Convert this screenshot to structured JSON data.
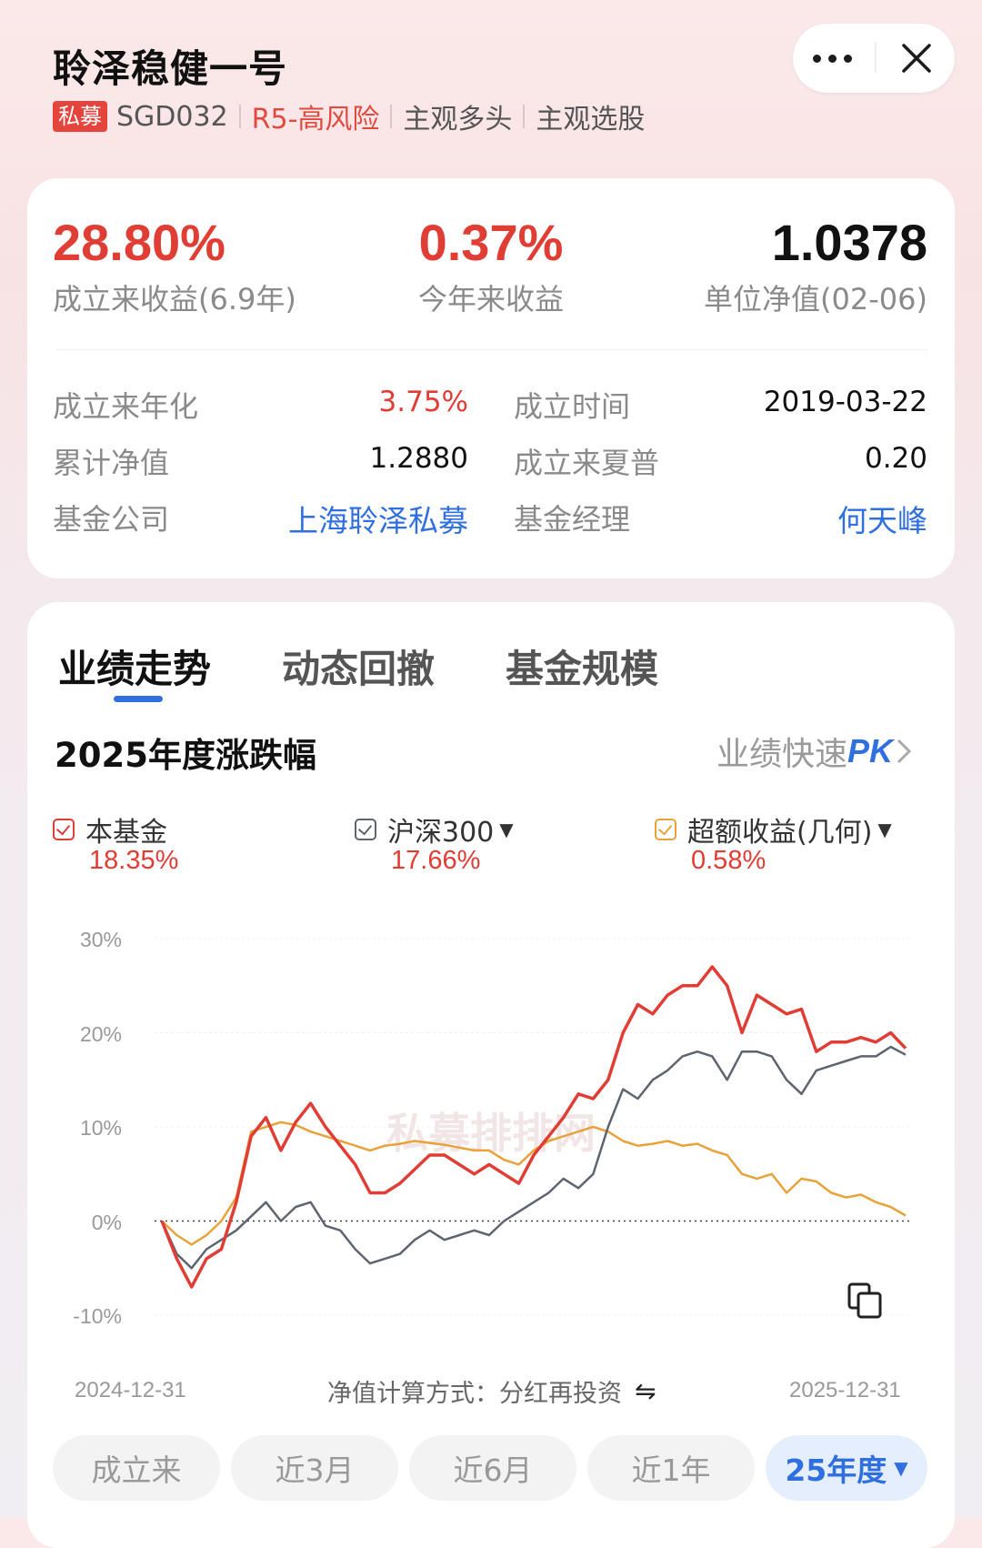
{
  "header": {
    "title": "聆泽稳健一号",
    "badge": "私募",
    "code": "SGD032",
    "risk": "R5-高风险",
    "strategy": "主观多头",
    "style": "主观选股"
  },
  "summary": {
    "since_inception_return": "28.80%",
    "since_inception_label": "成立来收益(6.9年)",
    "ytd_return": "0.37%",
    "ytd_label": "今年来收益",
    "nav": "1.0378",
    "nav_label": "单位净值(02-06)"
  },
  "details": {
    "annualized_label": "成立来年化",
    "annualized_value": "3.75%",
    "inception_date_label": "成立时间",
    "inception_date_value": "2019-03-22",
    "cumulative_nav_label": "累计净值",
    "cumulative_nav_value": "1.2880",
    "sharpe_label": "成立来夏普",
    "sharpe_value": "0.20",
    "company_label": "基金公司",
    "company_value": "上海聆泽私募",
    "manager_label": "基金经理",
    "manager_value": "何天峰"
  },
  "tabs": [
    "业绩走势",
    "动态回撤",
    "基金规模"
  ],
  "chart_section": {
    "title": "2025年度涨跌幅",
    "pk_prefix": "业绩快速",
    "pk_suffix": "PK",
    "calc_label": "净值计算方式：分红再投资"
  },
  "legend": [
    {
      "name": "本基金",
      "value": "18.35%",
      "color": "#e03d34",
      "dropdown": false
    },
    {
      "name": "沪深300",
      "value": "17.66%",
      "color": "#5e6470",
      "dropdown": true
    },
    {
      "name": "超额收益(几何)",
      "value": "0.58%",
      "color": "#e8a23a",
      "dropdown": true
    }
  ],
  "periods": [
    "成立来",
    "近3月",
    "近6月",
    "近1年",
    "25年度"
  ],
  "chart_data": {
    "type": "line",
    "title": "2025年度涨跌幅",
    "x_start": "2024-12-31",
    "x_end": "2025-12-31",
    "ylim": [
      -10,
      30
    ],
    "yticks": [
      "30%",
      "20%",
      "10%",
      "0%",
      "-10%"
    ],
    "ytick_values": [
      30,
      20,
      10,
      0,
      -10
    ],
    "watermark": "私募排排网",
    "series": [
      {
        "name": "本基金",
        "color": "#e03d34",
        "values": [
          0,
          -4,
          -7,
          -4,
          -3,
          2,
          9,
          11,
          7.5,
          10.5,
          12.5,
          10,
          8,
          6,
          3,
          3,
          4,
          5.5,
          7,
          7,
          6,
          5,
          6,
          5,
          4,
          7,
          9,
          11,
          13.5,
          13,
          15,
          20,
          23,
          22,
          24,
          25,
          25,
          27,
          25,
          20,
          24,
          23,
          22,
          22.5,
          18,
          19,
          19,
          19.5,
          19,
          20,
          18.35
        ]
      },
      {
        "name": "沪深300",
        "color": "#5e6470",
        "values": [
          0,
          -3.5,
          -5,
          -3,
          -2,
          -1,
          0.5,
          2,
          0,
          1.5,
          2,
          -0.5,
          -1,
          -3,
          -4.5,
          -4,
          -3.5,
          -2,
          -1,
          -2,
          -1.5,
          -1,
          -1.5,
          0,
          1,
          2,
          3,
          4.5,
          3.5,
          5,
          10,
          14,
          13,
          15,
          16,
          17.5,
          18,
          17.5,
          15,
          18,
          18,
          17.5,
          15,
          13.5,
          16,
          16.5,
          17,
          17.5,
          17.5,
          18.5,
          17.66
        ]
      },
      {
        "name": "超额收益(几何)",
        "color": "#e8a23a",
        "values": [
          0,
          -1.5,
          -2.5,
          -1.5,
          0,
          2.5,
          9.5,
          10,
          10.5,
          10.2,
          9.5,
          9,
          8.5,
          8,
          7.5,
          8,
          8.2,
          8.5,
          8.3,
          8.1,
          7.8,
          7.5,
          7.5,
          6.5,
          6,
          7.5,
          8.5,
          9,
          9.5,
          10,
          9.5,
          8.5,
          8,
          8.2,
          8.5,
          8,
          8.2,
          7.5,
          7,
          5,
          4.5,
          5,
          3,
          4.5,
          4.2,
          3,
          2.5,
          2.8,
          2,
          1.5,
          0.58
        ]
      }
    ]
  }
}
